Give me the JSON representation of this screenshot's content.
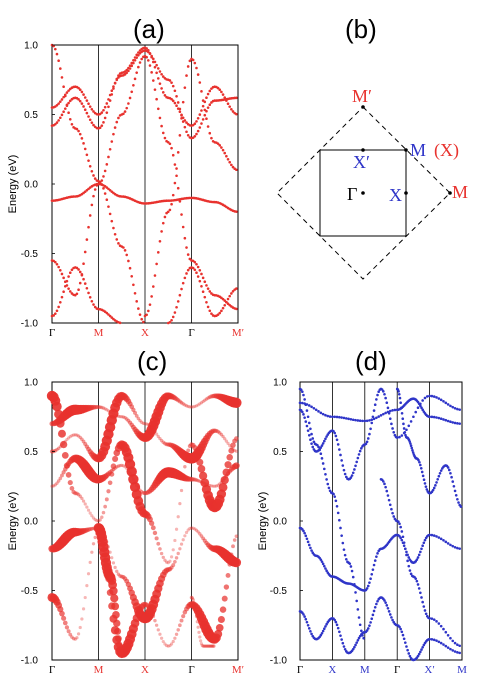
{
  "panels": [
    {
      "id": "a",
      "label": "(a)",
      "chart_data": {
        "type": "scatter",
        "ylabel": "Energy (eV)",
        "ylim": [
          -1.0,
          1.0
        ],
        "y_ticks": [
          "1.0",
          "0.5",
          "0.0",
          "-0.5",
          "-1.0"
        ],
        "x_ticks": [
          {
            "label": "Γ",
            "color": "#000000"
          },
          {
            "label": "M",
            "color": "#e8322e"
          },
          {
            "label": "X",
            "color": "#e8322e"
          },
          {
            "label": "Γ",
            "color": "#000000"
          },
          {
            "label": "M′",
            "color": "#e8322e"
          }
        ],
        "color": "#e8322e",
        "marker": "small-dots",
        "series": [
          {
            "values": [
              [
                0,
                -0.12
              ],
              [
                0.5,
                -0.09
              ],
              [
                1,
                0.0
              ],
              [
                1.5,
                -0.09
              ],
              [
                2,
                -0.14
              ],
              [
                2.5,
                -0.12
              ],
              [
                3,
                -0.1
              ],
              [
                3.5,
                -0.13
              ],
              [
                4,
                -0.2
              ]
            ]
          },
          {
            "values": [
              [
                0,
                0.55
              ],
              [
                0.5,
                0.7
              ],
              [
                1,
                0.5
              ],
              [
                1.5,
                0.78
              ],
              [
                2,
                0.96
              ],
              [
                2.5,
                0.75
              ],
              [
                3,
                0.33
              ],
              [
                3.5,
                0.6
              ],
              [
                4,
                0.62
              ]
            ]
          },
          {
            "values": [
              [
                0,
                0.42
              ],
              [
                0.5,
                0.62
              ],
              [
                1,
                0.4
              ],
              [
                1.5,
                0.8
              ],
              [
                2,
                0.98
              ],
              [
                2.5,
                0.62
              ],
              [
                3,
                0.42
              ],
              [
                3.5,
                0.7
              ],
              [
                4,
                0.5
              ]
            ]
          },
          {
            "values": [
              [
                0,
                1.0
              ],
              [
                0.5,
                0.4
              ],
              [
                1,
                0.02
              ],
              [
                1.5,
                -0.45
              ],
              [
                2,
                -1.0
              ]
            ]
          },
          {
            "values": [
              [
                0,
                -0.55
              ],
              [
                0.5,
                -0.8
              ],
              [
                1,
                0.0
              ],
              [
                1.5,
                0.5
              ],
              [
                2,
                0.92
              ],
              [
                2.5,
                0.3
              ],
              [
                3,
                -0.55
              ],
              [
                3.5,
                -0.8
              ],
              [
                4,
                -0.9
              ]
            ]
          },
          {
            "values": [
              [
                2,
                -0.95
              ],
              [
                2.5,
                -0.2
              ],
              [
                3,
                0.9
              ],
              [
                3.5,
                0.3
              ],
              [
                4,
                0.1
              ]
            ]
          },
          {
            "values": [
              [
                0,
                -0.95
              ],
              [
                0.5,
                -0.6
              ],
              [
                1,
                -0.9
              ],
              [
                1.5,
                -1.0
              ]
            ]
          },
          {
            "values": [
              [
                2.5,
                -1.0
              ],
              [
                3,
                -0.6
              ],
              [
                3.5,
                -0.95
              ],
              [
                4,
                -0.75
              ]
            ]
          }
        ]
      }
    },
    {
      "id": "b",
      "label": "(b)",
      "diagram": {
        "points": {
          "gamma": "Γ",
          "x": "X",
          "x_prime": "X′",
          "m": "M",
          "m_x": "(X)",
          "m_prime": "M′",
          "m_outer": "M"
        },
        "colors": {
          "red": "#e8322e",
          "blue": "#2f35c8",
          "black": "#000000"
        }
      }
    },
    {
      "id": "c",
      "label": "(c)",
      "chart_data": {
        "type": "scatter",
        "ylabel": "Energy (eV)",
        "ylim": [
          -1.0,
          1.0
        ],
        "y_ticks": [
          "1.0",
          "0.5",
          "0.0",
          "-0.5",
          "-1.0"
        ],
        "x_ticks": [
          {
            "label": "Γ",
            "color": "#000000"
          },
          {
            "label": "M",
            "color": "#e8322e"
          },
          {
            "label": "X",
            "color": "#e8322e"
          },
          {
            "label": "Γ",
            "color": "#000000"
          },
          {
            "label": "M′",
            "color": "#e8322e"
          }
        ],
        "color": "#e8322e",
        "marker": "weighted-circles",
        "series": [
          {
            "values": [
              [
                0,
                0.7
              ],
              [
                0.5,
                0.8
              ],
              [
                1,
                0.82
              ],
              [
                1.5,
                0.75
              ],
              [
                2,
                0.6
              ],
              [
                2.5,
                0.9
              ],
              [
                3,
                0.82
              ],
              [
                3.5,
                0.9
              ],
              [
                4,
                0.85
              ]
            ]
          },
          {
            "values": [
              [
                0,
                0.9
              ],
              [
                0.5,
                0.2
              ],
              [
                1,
                0.0
              ],
              [
                1.5,
                0.55
              ],
              [
                2,
                0.05
              ],
              [
                2.5,
                -0.3
              ],
              [
                3,
                0.55
              ],
              [
                3.5,
                0.1
              ],
              [
                4,
                0.6
              ]
            ]
          },
          {
            "values": [
              [
                0,
                0.5
              ],
              [
                0.5,
                0.62
              ],
              [
                1,
                0.45
              ],
              [
                1.5,
                0.9
              ],
              [
                2,
                0.7
              ],
              [
                2.5,
                0.55
              ],
              [
                3,
                0.45
              ],
              [
                3.5,
                0.65
              ],
              [
                4,
                0.5
              ]
            ]
          },
          {
            "values": [
              [
                0,
                0.25
              ],
              [
                0.5,
                0.45
              ],
              [
                1,
                0.3
              ],
              [
                1.5,
                0.4
              ],
              [
                2,
                0.2
              ],
              [
                2.5,
                0.35
              ],
              [
                3,
                0.3
              ],
              [
                3.5,
                0.25
              ],
              [
                4,
                0.4
              ]
            ]
          },
          {
            "values": [
              [
                0,
                -0.2
              ],
              [
                0.5,
                -0.08
              ],
              [
                1,
                -0.05
              ],
              [
                1.5,
                -0.4
              ],
              [
                2,
                -0.7
              ],
              [
                2.5,
                -0.35
              ],
              [
                3,
                -0.05
              ],
              [
                3.5,
                -0.2
              ],
              [
                4,
                -0.3
              ]
            ]
          },
          {
            "values": [
              [
                0,
                -0.55
              ],
              [
                0.5,
                -0.85
              ],
              [
                1,
                -0.08
              ],
              [
                1.5,
                -0.95
              ],
              [
                2,
                -0.6
              ],
              [
                2.5,
                -0.9
              ],
              [
                3,
                -0.6
              ],
              [
                3.5,
                -0.85
              ],
              [
                4,
                -0.1
              ]
            ]
          },
          {
            "values": [
              [
                1,
                -0.05
              ],
              [
                1.25,
                -0.4
              ],
              [
                1.5,
                -0.95
              ]
            ]
          },
          {
            "values": [
              [
                3,
                -0.55
              ],
              [
                3.25,
                -0.9
              ],
              [
                3.5,
                -0.9
              ]
            ]
          }
        ]
      }
    },
    {
      "id": "d",
      "label": "(d)",
      "chart_data": {
        "type": "scatter",
        "ylabel": "Energy (eV)",
        "ylim": [
          -1.0,
          1.0
        ],
        "y_ticks": [
          "1.0",
          "0.5",
          "0.0",
          "-0.5",
          "-1.0"
        ],
        "x_ticks": [
          {
            "label": "Γ",
            "color": "#000000"
          },
          {
            "label": "X",
            "color": "#2f35c8"
          },
          {
            "label": "M",
            "color": "#2f35c8"
          },
          {
            "label": "Γ",
            "color": "#000000"
          },
          {
            "label": "X′",
            "color": "#2f35c8"
          },
          {
            "label": "M",
            "color": "#2f35c8"
          }
        ],
        "color": "#2f35c8",
        "marker": "small-dots",
        "series": [
          {
            "values": [
              [
                0,
                0.85
              ],
              [
                1,
                0.75
              ],
              [
                2,
                0.72
              ],
              [
                3,
                0.8
              ],
              [
                3.5,
                0.88
              ],
              [
                4,
                0.75
              ],
              [
                5,
                0.7
              ]
            ]
          },
          {
            "values": [
              [
                0,
                0.8
              ],
              [
                0.5,
                0.5
              ],
              [
                1,
                0.65
              ],
              [
                1.5,
                0.3
              ],
              [
                2,
                0.55
              ],
              [
                2.5,
                0.95
              ],
              [
                3,
                0.6
              ],
              [
                4,
                0.9
              ],
              [
                5,
                0.8
              ]
            ]
          },
          {
            "values": [
              [
                0,
                -0.05
              ],
              [
                0.5,
                -0.25
              ],
              [
                1,
                -0.4
              ],
              [
                1.5,
                -0.45
              ],
              [
                2,
                -0.5
              ],
              [
                2.5,
                -0.2
              ],
              [
                3,
                -0.1
              ],
              [
                3.5,
                -0.3
              ],
              [
                4,
                -0.1
              ],
              [
                5,
                -0.2
              ]
            ]
          },
          {
            "values": [
              [
                0,
                -0.65
              ],
              [
                0.5,
                -0.85
              ],
              [
                1,
                -0.7
              ],
              [
                1.5,
                -0.95
              ],
              [
                2,
                -0.8
              ],
              [
                2.5,
                -0.55
              ],
              [
                3,
                -0.75
              ],
              [
                3.5,
                -1.0
              ],
              [
                4,
                -0.85
              ],
              [
                5,
                -0.95
              ]
            ]
          },
          {
            "values": [
              [
                0,
                0.95
              ],
              [
                0.5,
                0.55
              ],
              [
                1,
                0.2
              ],
              [
                1.5,
                -0.3
              ],
              [
                2,
                -0.85
              ]
            ]
          },
          {
            "values": [
              [
                2.5,
                0.3
              ],
              [
                3,
                0.0
              ],
              [
                3.5,
                -0.4
              ],
              [
                4,
                -0.7
              ],
              [
                5,
                -0.9
              ]
            ]
          },
          {
            "values": [
              [
                3,
                0.95
              ],
              [
                3.3,
                0.6
              ],
              [
                3.6,
                0.45
              ],
              [
                4,
                0.2
              ],
              [
                4.5,
                0.4
              ],
              [
                5,
                0.1
              ]
            ]
          }
        ]
      }
    }
  ]
}
